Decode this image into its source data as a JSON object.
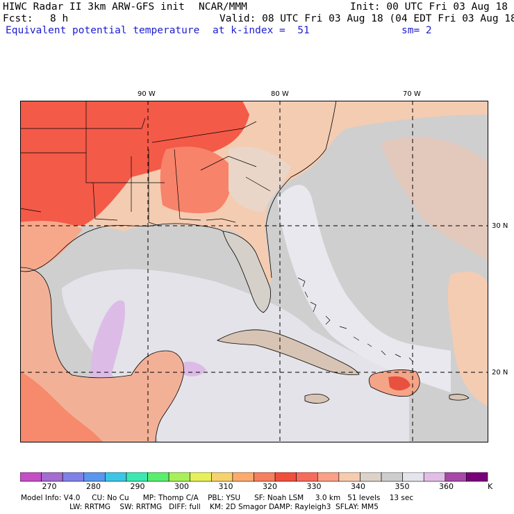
{
  "header": {
    "title_left": "HIWC Radar II 3km ARW-GFS init",
    "title_mid": "NCAR/MMM",
    "init": "Init: 00 UTC Fri 03 Aug 18",
    "fcst_label": "Fcst:",
    "fcst_value": "8 h",
    "valid": "Valid: 08 UTC Fri 03 Aug 18 (04 EDT Fri 03 Aug 18)",
    "field_name": "Equivalent potential temperature",
    "level": "at k-index =  51",
    "smoothing": "sm= 2"
  },
  "map": {
    "lon_labels": [
      "90 W",
      "80 W",
      "70 W"
    ],
    "lat_labels": [
      "30 N",
      "20 N"
    ]
  },
  "colorbar": {
    "unit": "K",
    "tick_labels": [
      "270",
      "280",
      "290",
      "300",
      "310",
      "320",
      "330",
      "340",
      "350",
      "360"
    ],
    "colors": [
      "#c44fc4",
      "#a46bd0",
      "#8080e6",
      "#5a96ee",
      "#3cc6e6",
      "#3ce8b0",
      "#5aee6e",
      "#a8f05a",
      "#e6f05a",
      "#f6d26e",
      "#fbab6e",
      "#f57f5f",
      "#f14f3c",
      "#f76b5e",
      "#fb9f88",
      "#f6cbb0",
      "#ddd2c8",
      "#cdcdcd",
      "#e4e4ec",
      "#e2bee6",
      "#a848a8",
      "#7a007a"
    ]
  },
  "footer": {
    "line1": "Model Info: V4.0     CU: No Cu      MP: Thomp C/A    PBL: YSU      SF: Noah LSM     3.0 km   51 levels    13 sec",
    "line2": "                     LW: RRTMG    SW: RRTMG   DIFF: full    KM: 2D Smagor DAMP: Rayleigh3  SFLAY: MM5"
  }
}
